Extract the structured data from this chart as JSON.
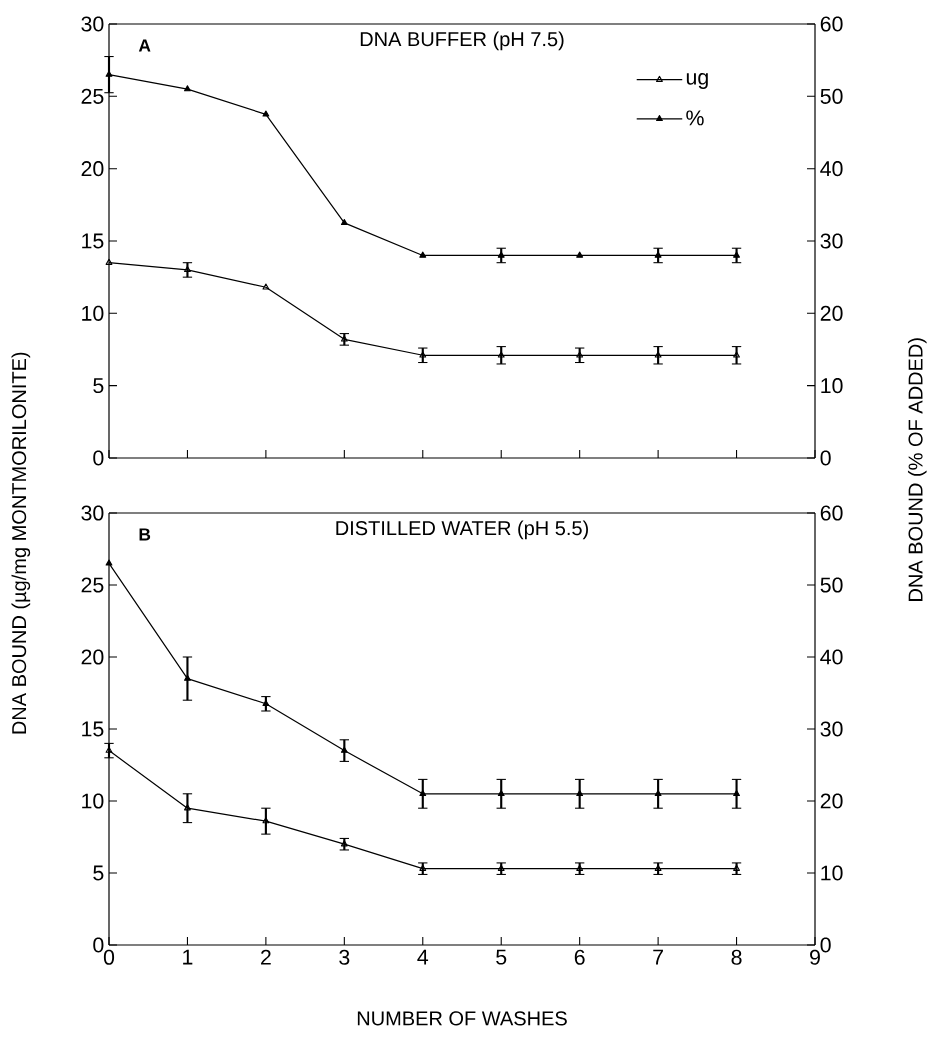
{
  "chart_data": [
    {
      "type": "line",
      "title": "DNA BUFFER (pH 7.5)",
      "annotations": [
        "A"
      ],
      "categories": [
        null,
        null,
        null,
        null,
        null,
        null,
        null,
        null,
        null
      ],
      "ylim": [
        0,
        30
      ],
      "yticks": [
        0,
        5,
        10,
        15,
        20,
        25,
        30
      ],
      "y2lim": [
        0,
        60
      ],
      "y2ticks": [
        0,
        10,
        20,
        30,
        40,
        50,
        60
      ],
      "tick_labels": [
        "y",
        "y2"
      ],
      "marker": "triangle",
      "line_style": "solid",
      "legend": "top right",
      "series": [
        {
          "name": "ug",
          "color": "#000000",
          "values": [
            13.5,
            13.0,
            11.8,
            8.2,
            7.1,
            7.1,
            7.1,
            7.1,
            7.1
          ],
          "errors": [
            null,
            0.5,
            null,
            0.4,
            0.5,
            0.6,
            0.5,
            0.6,
            0.6
          ]
        },
        {
          "name": "%",
          "color": "#000000",
          "axis": "y2",
          "values": [
            53,
            51,
            47.5,
            32.5,
            28,
            28,
            28,
            28,
            28
          ],
          "errors": [
            2.5,
            null,
            null,
            null,
            null,
            1,
            null,
            1,
            1
          ]
        }
      ]
    },
    {
      "type": "line",
      "title": "DISTILLED WATER (pH 5.5)",
      "annotations": [
        "B"
      ],
      "xlabel": "NUMBER OF WASHES",
      "ylabel": "DNA BOUND (µg/mg MONTMORILONITE)",
      "y2label": "DNA BOUND (% OF ADDED)",
      "x": [
        0,
        1,
        2,
        3,
        4,
        5,
        6,
        7,
        8
      ],
      "xlim": [
        0,
        9
      ],
      "xticks": [
        0,
        1,
        2,
        3,
        4,
        5,
        6,
        7,
        8,
        9
      ],
      "ylim": [
        0,
        30
      ],
      "yticks": [
        0,
        5,
        10,
        15,
        20,
        25,
        30
      ],
      "y2lim": [
        0,
        60
      ],
      "y2ticks": [
        0,
        10,
        20,
        30,
        40,
        50,
        60
      ],
      "marker": "triangle",
      "line_style": "solid",
      "series": [
        {
          "color": "#000000",
          "values": [
            13.5,
            9.5,
            8.6,
            7.0,
            5.3,
            5.3,
            5.3,
            5.3,
            5.3
          ],
          "errors": [
            0.5,
            1.0,
            0.9,
            0.4,
            0.4,
            0.4,
            0.4,
            0.4,
            0.4
          ]
        },
        {
          "color": "#000000",
          "axis": "y2",
          "values": [
            53,
            37,
            33.5,
            27,
            21,
            21,
            21,
            21,
            21
          ],
          "errors": [
            null,
            3,
            1,
            1.5,
            2,
            2,
            2,
            2,
            2
          ]
        }
      ]
    }
  ]
}
